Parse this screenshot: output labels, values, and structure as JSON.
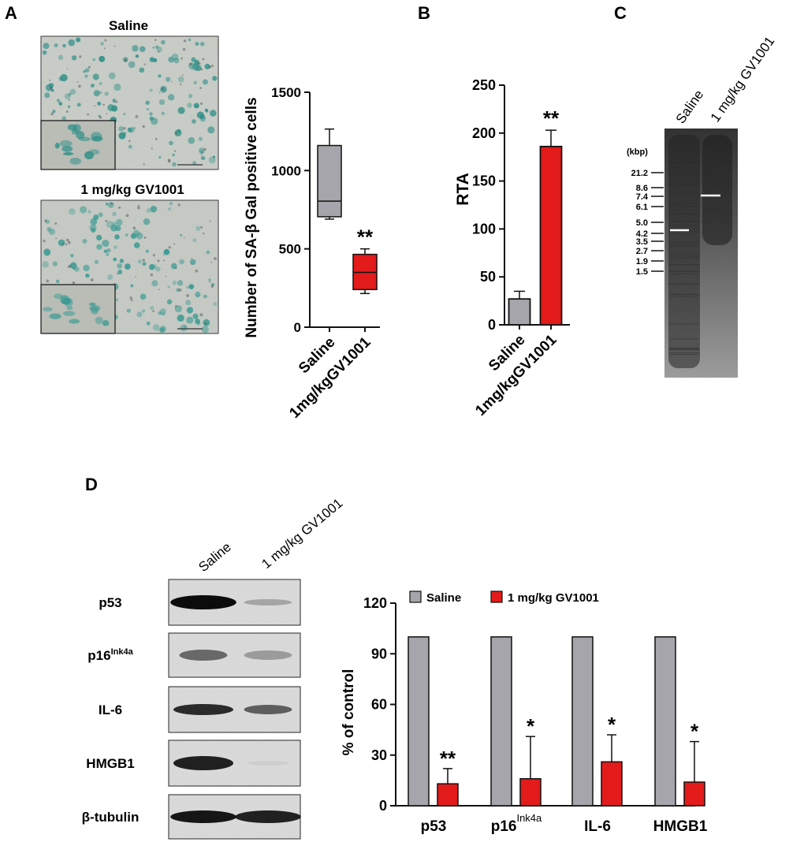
{
  "panels": {
    "A": {
      "letter": "A",
      "micrographs": [
        {
          "label": "Saline",
          "tone": "#c9cdc7",
          "stain": "#2e8f87"
        },
        {
          "label": "1 mg/kg GV1001",
          "tone": "#c6cac4",
          "stain": "#3a9a92"
        }
      ],
      "significance": "**"
    },
    "B": {
      "letter": "B",
      "significance": "**"
    },
    "C": {
      "letter": "C",
      "lanes": [
        "Saline",
        "1 mg/kg GV1001"
      ],
      "unit": "(kbp)",
      "markers": [
        "21.2",
        "8.6",
        "7.4",
        "6.1",
        "5.0",
        "4.2",
        "3.5",
        "2.7",
        "1.9",
        "1.5"
      ]
    },
    "D": {
      "letter": "D",
      "lanes": [
        "Saline",
        "1 mg/kg GV1001"
      ],
      "blots": [
        {
          "label": "p53",
          "sup": ""
        },
        {
          "label": "p16",
          "sup": "Ink4a"
        },
        {
          "label": "IL-6",
          "sup": ""
        },
        {
          "label": "HMGB1",
          "sup": ""
        },
        {
          "label": "β-tubulin",
          "sup": ""
        }
      ]
    }
  },
  "chart_data": [
    {
      "id": "A-box",
      "type": "box",
      "ylabel": "Number of SA-β Gal positive cells",
      "ylim": [
        0,
        1500
      ],
      "yticks": [
        0,
        500,
        1000,
        1500
      ],
      "categories": [
        "Saline",
        "1mg/kgGV1001"
      ],
      "boxes": [
        {
          "category": "Saline",
          "min": 690,
          "q1": 705,
          "median": 805,
          "q3": 1160,
          "max": 1265,
          "color": "#a5a5ab"
        },
        {
          "category": "1mg/kgGV1001",
          "min": 215,
          "q1": 240,
          "median": 350,
          "q3": 465,
          "max": 500,
          "color": "#e31b1b"
        }
      ],
      "annotations": [
        {
          "category": "1mg/kgGV1001",
          "text": "**"
        }
      ]
    },
    {
      "id": "B-bar",
      "type": "bar",
      "ylabel": "RTA",
      "ylim": [
        0,
        250
      ],
      "yticks": [
        0,
        50,
        100,
        150,
        200,
        250
      ],
      "categories": [
        "Saline",
        "1mg/kgGV1001"
      ],
      "values": [
        27,
        186
      ],
      "errors": [
        8,
        17
      ],
      "colors": [
        "#a5a5ab",
        "#e31b1b"
      ],
      "annotations": [
        {
          "category": "1mg/kgGV1001",
          "text": "**"
        }
      ]
    },
    {
      "id": "D-bar",
      "type": "bar",
      "ylabel": "% of control",
      "ylim": [
        0,
        120
      ],
      "yticks": [
        0,
        30,
        60,
        90,
        120
      ],
      "categories": [
        {
          "label": "p53",
          "sup": ""
        },
        {
          "label": "p16",
          "sup": "Ink4a"
        },
        {
          "label": "IL-6",
          "sup": ""
        },
        {
          "label": "HMGB1",
          "sup": ""
        }
      ],
      "series": [
        {
          "name": "Saline",
          "color": "#a5a5ab",
          "values": [
            100,
            100,
            100,
            100
          ],
          "errors": [
            0,
            0,
            0,
            0
          ]
        },
        {
          "name": "1 mg/kg GV1001",
          "color": "#e31b1b",
          "values": [
            13,
            16,
            26,
            14
          ],
          "errors": [
            9,
            25,
            16,
            24
          ]
        }
      ],
      "annotations": [
        "**",
        "*",
        "*",
        "*"
      ],
      "legend": "top"
    }
  ]
}
